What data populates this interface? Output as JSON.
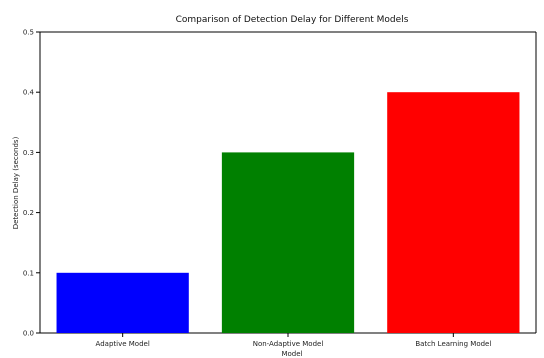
{
  "chart_data": {
    "type": "bar",
    "title": "Comparison of Detection Delay for Different Models",
    "xlabel": "Model",
    "ylabel": "Detection Delay (seconds)",
    "categories": [
      "Adaptive Model",
      "Non-Adaptive Model",
      "Batch Learning Model"
    ],
    "values": [
      0.1,
      0.3,
      0.4
    ],
    "colors": [
      "#0000ff",
      "#008000",
      "#ff0000"
    ],
    "ylim": [
      0,
      0.5
    ],
    "yticks": [
      "0.0",
      "0.1",
      "0.2",
      "0.3",
      "0.4",
      "0.5"
    ],
    "grid": false
  }
}
